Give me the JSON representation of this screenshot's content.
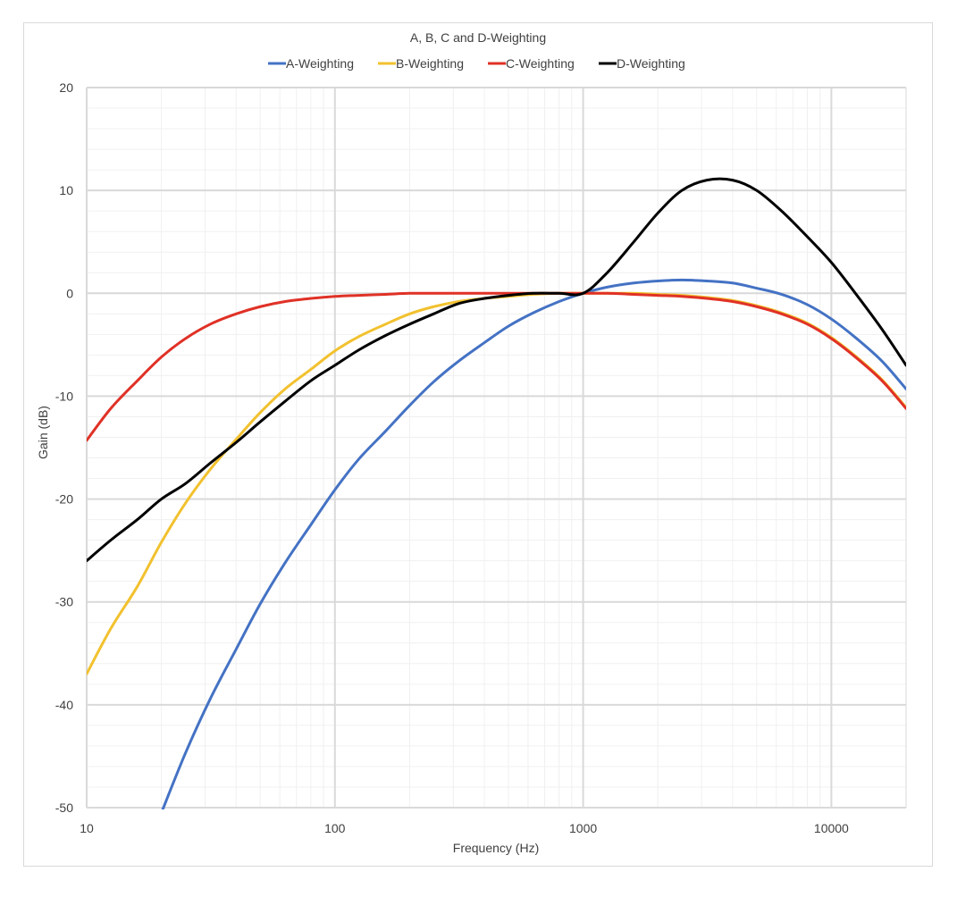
{
  "chart_data": {
    "type": "line",
    "title": "A, B, C and D-Weighting",
    "xlabel": "Frequency (Hz)",
    "ylabel": "Gain (dB)",
    "x_scale": "log",
    "xlim": [
      10,
      20000
    ],
    "ylim": [
      -50,
      20
    ],
    "x_ticks": [
      "10",
      "100",
      "1000",
      "10000"
    ],
    "y_ticks": [
      "20",
      "10",
      "0",
      "-10",
      "-20",
      "-30",
      "-40",
      "-50"
    ],
    "grid": true,
    "legend_position": "top",
    "series": [
      {
        "name": "A-Weighting",
        "color": "#4472c4",
        "points": [
          [
            20,
            -50.5
          ],
          [
            25,
            -44.7
          ],
          [
            31.5,
            -39.4
          ],
          [
            40,
            -34.6
          ],
          [
            50,
            -30.2
          ],
          [
            63,
            -26.2
          ],
          [
            80,
            -22.5
          ],
          [
            100,
            -19.1
          ],
          [
            125,
            -16.1
          ],
          [
            160,
            -13.4
          ],
          [
            200,
            -10.9
          ],
          [
            250,
            -8.6
          ],
          [
            315,
            -6.6
          ],
          [
            400,
            -4.8
          ],
          [
            500,
            -3.2
          ],
          [
            630,
            -1.9
          ],
          [
            800,
            -0.8
          ],
          [
            1000,
            0
          ],
          [
            1250,
            0.6
          ],
          [
            1600,
            1.0
          ],
          [
            2000,
            1.2
          ],
          [
            2500,
            1.3
          ],
          [
            3150,
            1.2
          ],
          [
            4000,
            1.0
          ],
          [
            5000,
            0.5
          ],
          [
            6300,
            -0.1
          ],
          [
            8000,
            -1.1
          ],
          [
            10000,
            -2.5
          ],
          [
            12500,
            -4.3
          ],
          [
            16000,
            -6.6
          ],
          [
            20000,
            -9.3
          ]
        ]
      },
      {
        "name": "B-Weighting",
        "color": "#f2c12e",
        "points": [
          [
            10,
            -37
          ],
          [
            12.5,
            -32.6
          ],
          [
            16,
            -28.5
          ],
          [
            20,
            -24.2
          ],
          [
            25,
            -20.4
          ],
          [
            31.5,
            -17.1
          ],
          [
            40,
            -14.2
          ],
          [
            50,
            -11.6
          ],
          [
            63,
            -9.3
          ],
          [
            80,
            -7.4
          ],
          [
            100,
            -5.6
          ],
          [
            125,
            -4.2
          ],
          [
            160,
            -3.0
          ],
          [
            200,
            -2.0
          ],
          [
            250,
            -1.3
          ],
          [
            315,
            -0.8
          ],
          [
            400,
            -0.5
          ],
          [
            500,
            -0.3
          ],
          [
            630,
            -0.1
          ],
          [
            800,
            0
          ],
          [
            1000,
            0
          ],
          [
            1250,
            0
          ],
          [
            1600,
            0
          ],
          [
            2000,
            -0.1
          ],
          [
            2500,
            -0.2
          ],
          [
            3150,
            -0.4
          ],
          [
            4000,
            -0.7
          ],
          [
            5000,
            -1.2
          ],
          [
            6300,
            -1.9
          ],
          [
            8000,
            -2.9
          ],
          [
            10000,
            -4.3
          ],
          [
            12500,
            -6.1
          ],
          [
            16000,
            -8.4
          ],
          [
            20000,
            -11.1
          ]
        ]
      },
      {
        "name": "C-Weighting",
        "color": "#e03126",
        "points": [
          [
            10,
            -14.3
          ],
          [
            12.5,
            -11.2
          ],
          [
            16,
            -8.5
          ],
          [
            20,
            -6.2
          ],
          [
            25,
            -4.4
          ],
          [
            31.5,
            -3.0
          ],
          [
            40,
            -2.0
          ],
          [
            50,
            -1.3
          ],
          [
            63,
            -0.8
          ],
          [
            80,
            -0.5
          ],
          [
            100,
            -0.3
          ],
          [
            125,
            -0.2
          ],
          [
            160,
            -0.1
          ],
          [
            200,
            0
          ],
          [
            250,
            0
          ],
          [
            315,
            0
          ],
          [
            400,
            0
          ],
          [
            500,
            0
          ],
          [
            630,
            0
          ],
          [
            800,
            0
          ],
          [
            1000,
            0
          ],
          [
            1250,
            0
          ],
          [
            1600,
            -0.1
          ],
          [
            2000,
            -0.2
          ],
          [
            2500,
            -0.3
          ],
          [
            3150,
            -0.5
          ],
          [
            4000,
            -0.8
          ],
          [
            5000,
            -1.3
          ],
          [
            6300,
            -2.0
          ],
          [
            8000,
            -3.0
          ],
          [
            10000,
            -4.4
          ],
          [
            12500,
            -6.2
          ],
          [
            16000,
            -8.5
          ],
          [
            20000,
            -11.2
          ]
        ]
      },
      {
        "name": "D-Weighting",
        "color": "#000000",
        "points": [
          [
            10,
            -26.0
          ],
          [
            12.5,
            -24.0
          ],
          [
            16,
            -22.0
          ],
          [
            20,
            -20.0
          ],
          [
            25,
            -18.5
          ],
          [
            31.5,
            -16.5
          ],
          [
            40,
            -14.5
          ],
          [
            50,
            -12.5
          ],
          [
            63,
            -10.5
          ],
          [
            80,
            -8.5
          ],
          [
            100,
            -7.0
          ],
          [
            125,
            -5.5
          ],
          [
            160,
            -4.1
          ],
          [
            200,
            -3.0
          ],
          [
            250,
            -2.0
          ],
          [
            315,
            -1.0
          ],
          [
            400,
            -0.5
          ],
          [
            500,
            -0.2
          ],
          [
            630,
            0
          ],
          [
            800,
            0
          ],
          [
            1000,
            0
          ],
          [
            1250,
            2.0
          ],
          [
            1600,
            5.0
          ],
          [
            2000,
            7.8
          ],
          [
            2500,
            10.0
          ],
          [
            3150,
            11.0
          ],
          [
            4000,
            11.0
          ],
          [
            5000,
            10.0
          ],
          [
            6300,
            8.0
          ],
          [
            8000,
            5.5
          ],
          [
            10000,
            3.0
          ],
          [
            12500,
            0
          ],
          [
            16000,
            -3.5
          ],
          [
            20000,
            -7.0
          ]
        ]
      }
    ]
  }
}
